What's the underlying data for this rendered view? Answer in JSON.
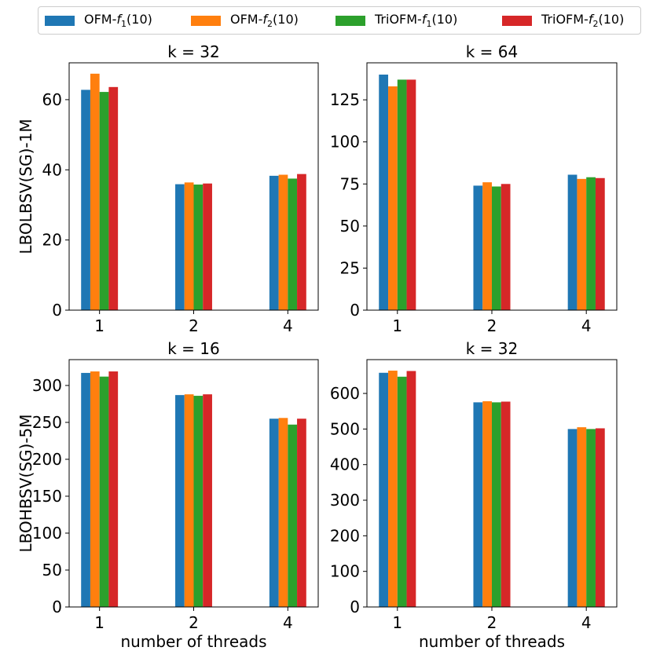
{
  "legend": {
    "series": [
      {
        "prefix": "OFM-",
        "f": "f",
        "sub": "1",
        "suffix": "(10)",
        "color": "#1f77b4"
      },
      {
        "prefix": "OFM-",
        "f": "f",
        "sub": "2",
        "suffix": "(10)",
        "color": "#ff7f0e"
      },
      {
        "prefix": "TriOFM-",
        "f": "f",
        "sub": "1",
        "suffix": "(10)",
        "color": "#2ca02c"
      },
      {
        "prefix": "TriOFM-",
        "f": "f",
        "sub": "2",
        "suffix": "(10)",
        "color": "#d62728"
      }
    ]
  },
  "chart_data": [
    {
      "type": "bar",
      "title": "k = 32",
      "ylabel": "LBOLBSV(SG)-1M",
      "xlabel": "",
      "categories": [
        "1",
        "2",
        "4"
      ],
      "ylim": [
        0,
        70.5
      ],
      "yticks": [
        0,
        20,
        40,
        60
      ],
      "series": [
        {
          "name": "OFM-f1(10)",
          "values": [
            62.8,
            35.9,
            38.3
          ]
        },
        {
          "name": "OFM-f2(10)",
          "values": [
            67.4,
            36.4,
            38.6
          ]
        },
        {
          "name": "TriOFM-f1(10)",
          "values": [
            62.2,
            35.8,
            37.5
          ]
        },
        {
          "name": "TriOFM-f2(10)",
          "values": [
            63.6,
            36.1,
            38.8
          ]
        }
      ]
    },
    {
      "type": "bar",
      "title": "k = 64",
      "ylabel": "",
      "xlabel": "",
      "categories": [
        "1",
        "2",
        "4"
      ],
      "ylim": [
        0,
        147
      ],
      "yticks": [
        0,
        25,
        50,
        75,
        100,
        125
      ],
      "series": [
        {
          "name": "OFM-f1(10)",
          "values": [
            140,
            74,
            80.5
          ]
        },
        {
          "name": "OFM-f2(10)",
          "values": [
            133,
            76,
            78
          ]
        },
        {
          "name": "TriOFM-f1(10)",
          "values": [
            137,
            73.5,
            79
          ]
        },
        {
          "name": "TriOFM-f2(10)",
          "values": [
            137,
            75,
            78.5
          ]
        }
      ]
    },
    {
      "type": "bar",
      "title": "k = 16",
      "ylabel": "LBOHBSV(SG)-5M",
      "xlabel": "number of threads",
      "categories": [
        "1",
        "2",
        "4"
      ],
      "ylim": [
        0,
        335
      ],
      "yticks": [
        0,
        50,
        100,
        150,
        200,
        250,
        300
      ],
      "series": [
        {
          "name": "OFM-f1(10)",
          "values": [
            317,
            287,
            255
          ]
        },
        {
          "name": "OFM-f2(10)",
          "values": [
            319,
            288,
            256
          ]
        },
        {
          "name": "TriOFM-f1(10)",
          "values": [
            312,
            286,
            247
          ]
        },
        {
          "name": "TriOFM-f2(10)",
          "values": [
            319,
            288,
            255
          ]
        }
      ]
    },
    {
      "type": "bar",
      "title": "k = 32",
      "ylabel": "",
      "xlabel": "number of threads",
      "categories": [
        "1",
        "2",
        "4"
      ],
      "ylim": [
        0,
        695
      ],
      "yticks": [
        0,
        100,
        200,
        300,
        400,
        500,
        600
      ],
      "series": [
        {
          "name": "OFM-f1(10)",
          "values": [
            658,
            575,
            500
          ]
        },
        {
          "name": "OFM-f2(10)",
          "values": [
            664,
            578,
            505
          ]
        },
        {
          "name": "TriOFM-f1(10)",
          "values": [
            647,
            575,
            500
          ]
        },
        {
          "name": "TriOFM-f2(10)",
          "values": [
            663,
            577,
            502
          ]
        }
      ]
    }
  ]
}
